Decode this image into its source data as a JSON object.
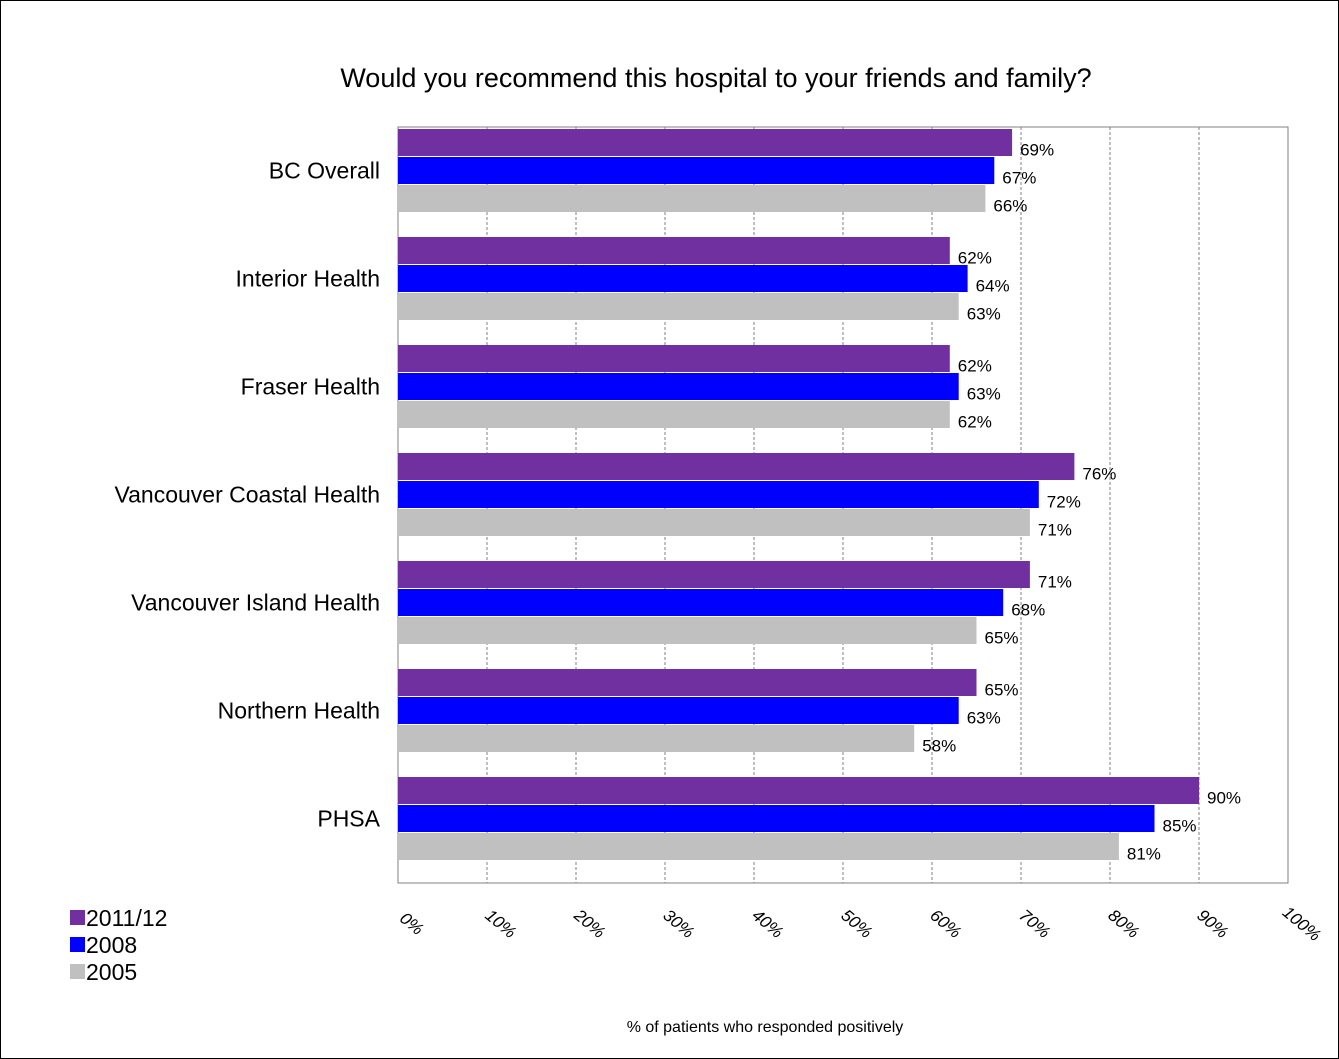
{
  "chart_data": {
    "type": "bar",
    "orientation": "horizontal",
    "title": "Would you recommend this hospital to your friends and family?",
    "xlabel": "% of patients who responded positively",
    "ylabel": "",
    "xlim": [
      0,
      100
    ],
    "x_ticks": [
      "0%",
      "10%",
      "20%",
      "30%",
      "40%",
      "50%",
      "60%",
      "70%",
      "80%",
      "90%",
      "100%"
    ],
    "grid": true,
    "legend_position": "bottom-left",
    "categories": [
      "BC Overall",
      "Interior Health",
      "Fraser Health",
      "Vancouver Coastal Health",
      "Vancouver Island Health",
      "Northern Health",
      "PHSA"
    ],
    "series": [
      {
        "name": "2011/12",
        "color": "#7030A0",
        "values": [
          69,
          62,
          62,
          76,
          71,
          65,
          90
        ],
        "labels": [
          "69%",
          "62%",
          "62%",
          "76%",
          "71%",
          "65%",
          "90%"
        ]
      },
      {
        "name": "2008",
        "color": "#0000FF",
        "values": [
          67,
          64,
          63,
          72,
          68,
          63,
          85
        ],
        "labels": [
          "67%",
          "64%",
          "63%",
          "72%",
          "68%",
          "63%",
          "85%"
        ]
      },
      {
        "name": "2005",
        "color": "#C0C0C0",
        "values": [
          66,
          63,
          62,
          71,
          65,
          58,
          81
        ],
        "labels": [
          "66%",
          "63%",
          "62%",
          "71%",
          "65%",
          "58%",
          "81%"
        ]
      }
    ]
  }
}
